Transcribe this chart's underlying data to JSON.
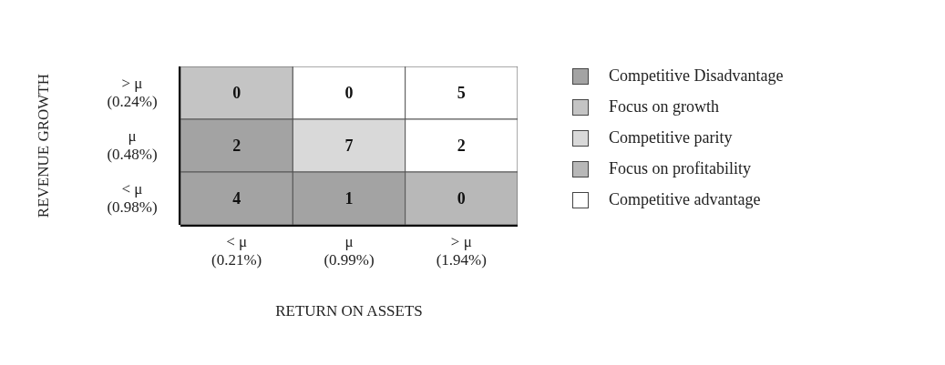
{
  "chart_data": {
    "type": "heatmap",
    "xlabel": "RETURN ON ASSETS",
    "ylabel": "REVENUE GROWTH",
    "categories": [
      "< μ\n(0.21%)",
      "μ\n(0.99%)",
      "> μ\n(1.94%)"
    ],
    "y_categories": [
      "> μ\n(0.24%)",
      "μ\n(0.48%)",
      "< μ\n(0.98%)"
    ],
    "cells": [
      [
        0,
        0,
        5
      ],
      [
        2,
        7,
        2
      ],
      [
        4,
        1,
        0
      ]
    ],
    "colors": [
      [
        "#c4c4c4",
        "#ffffff",
        "#ffffff"
      ],
      [
        "#a3a3a3",
        "#d9d9d9",
        "#ffffff"
      ],
      [
        "#a3a3a3",
        "#a3a3a3",
        "#b8b8b8"
      ]
    ],
    "annotations": [
      "Competitive Disadvantage",
      "Focus on growth",
      "Competitive parity",
      "Focus on profitability",
      "Competitive advantage"
    ],
    "data_labels": true
  }
}
